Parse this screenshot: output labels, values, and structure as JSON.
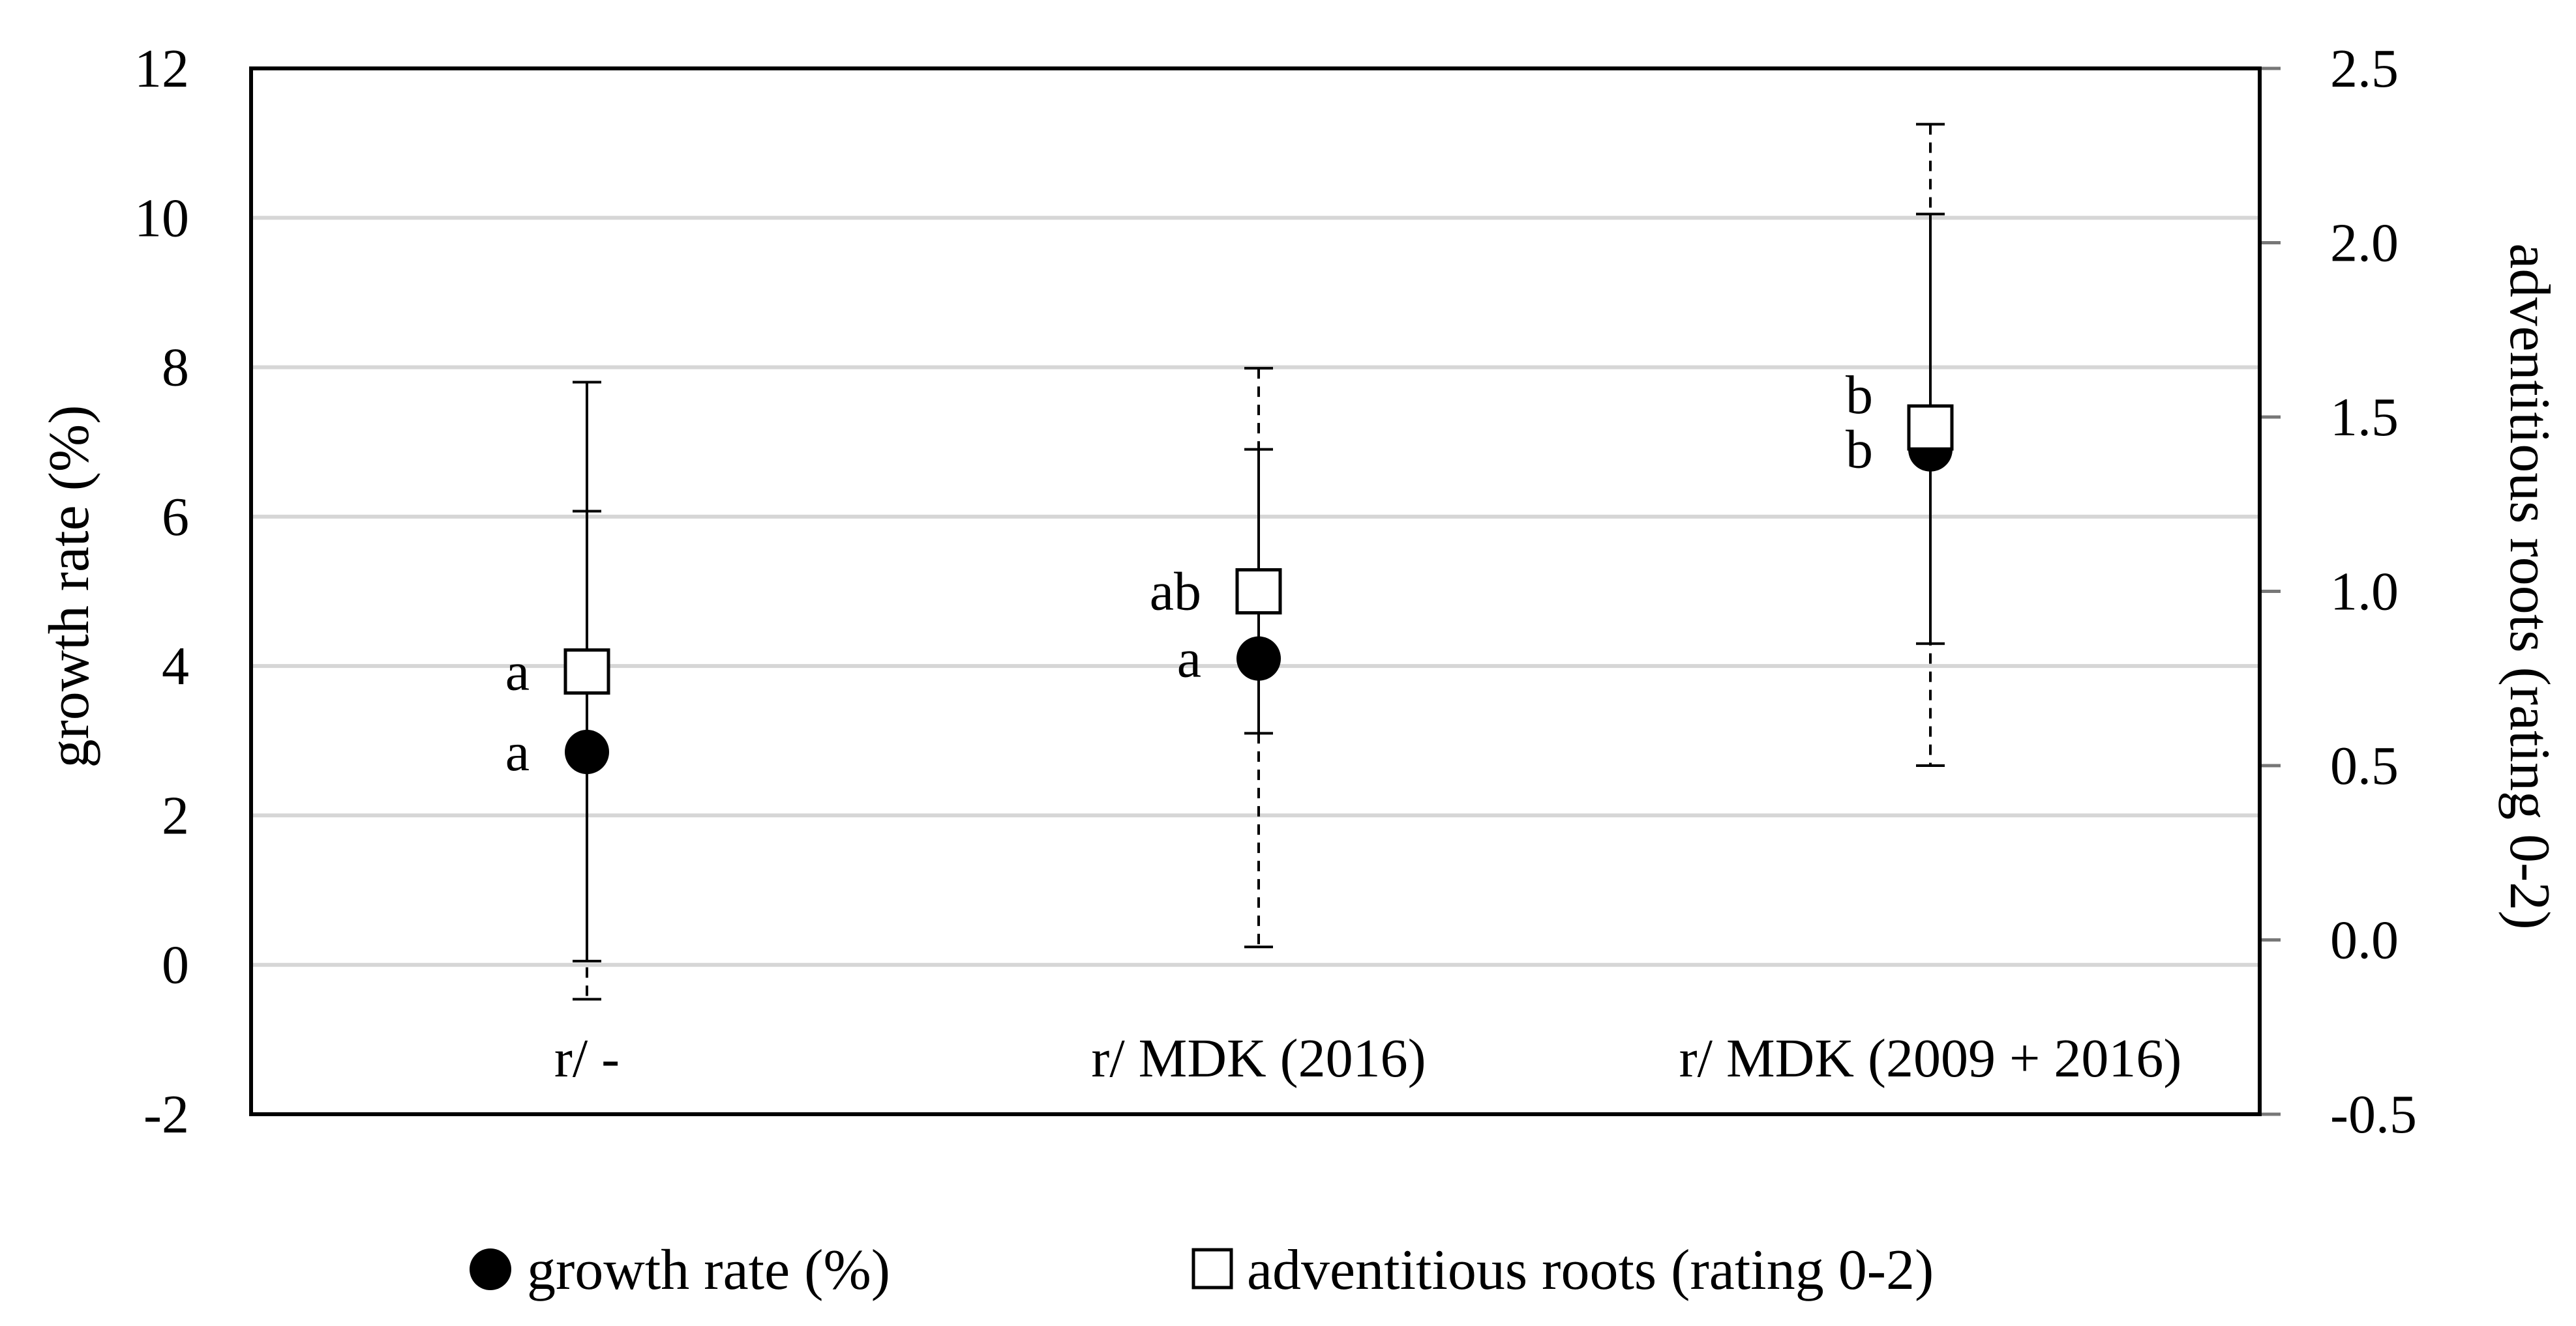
{
  "chart_data": {
    "type": "scatter",
    "categories": [
      "r/ -",
      "r/ MDK (2016)",
      "r/ MDK (2009 + 2016)"
    ],
    "y_left": {
      "label": "growth rate (%)",
      "range": [
        -2,
        12
      ],
      "ticks": [
        -2,
        0,
        2,
        4,
        6,
        8,
        10,
        12
      ],
      "tick_labels": [
        "-2",
        "0",
        "2",
        "4",
        "6",
        "8",
        "10",
        "12"
      ]
    },
    "y_right": {
      "label": "adventitious roots (rating 0-2)",
      "range": [
        -0.5,
        2.5
      ],
      "ticks": [
        -0.5,
        0.0,
        0.5,
        1.0,
        1.5,
        2.0,
        2.5
      ],
      "tick_labels": [
        "-0.5",
        "0.0",
        "0.5",
        "1.0",
        "1.5",
        "2.0",
        "2.5"
      ]
    },
    "grid": true,
    "legend_position": "bottom-center",
    "series": [
      {
        "name": "growth rate (%)",
        "axis": "left",
        "marker": "filled-circle",
        "error_style": "solid",
        "values": [
          2.85,
          4.1,
          6.9
        ],
        "err_low": [
          0.05,
          3.1,
          4.3
        ],
        "err_high": [
          7.8,
          6.9,
          10.05
        ],
        "letters": [
          "a",
          "a",
          "b"
        ]
      },
      {
        "name": "adventitious roots (rating 0-2)",
        "axis": "right",
        "marker": "open-square",
        "error_style": "dashed",
        "values": [
          0.77,
          1.0,
          1.47
        ],
        "err_low": [
          -0.17,
          -0.02,
          0.5
        ],
        "err_high": [
          1.23,
          1.64,
          2.34
        ],
        "letters": [
          "a",
          "ab",
          "b"
        ]
      }
    ]
  }
}
